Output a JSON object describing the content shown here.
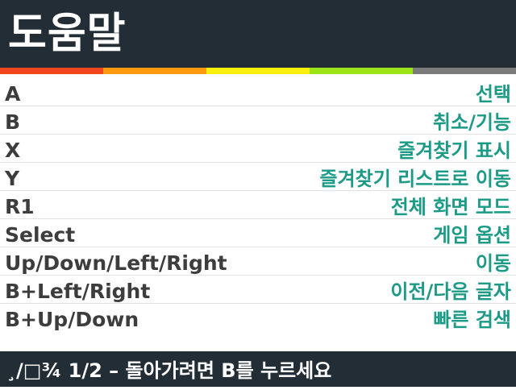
{
  "header": {
    "title": "도움말"
  },
  "stripe_colors": [
    "#f1461b",
    "#fb9a0f",
    "#f7ef0e",
    "#9ce41a",
    "#7b7b7b"
  ],
  "bindings": [
    {
      "key": "A",
      "action": "선택"
    },
    {
      "key": "B",
      "action": "취소/기능"
    },
    {
      "key": "X",
      "action": "즐겨찾기 표시"
    },
    {
      "key": "Y",
      "action": "즐겨찾기 리스트로 이동"
    },
    {
      "key": "R1",
      "action": "전체 화면 모드"
    },
    {
      "key": "Select",
      "action": "게임 옵션"
    },
    {
      "key": "Up/Down/Left/Right",
      "action": "이동"
    },
    {
      "key": "B+Left/Right",
      "action": "이전/다음 글자"
    },
    {
      "key": "B+Up/Down",
      "action": "빠른 검색"
    }
  ],
  "footer": {
    "text": "¸/□¾ 1/2 – 돌아가려면 B를 누르세요"
  },
  "colors": {
    "header_bg": "#222d35",
    "key_text": "#3d3d3d",
    "action_text": "#1b9a86"
  }
}
